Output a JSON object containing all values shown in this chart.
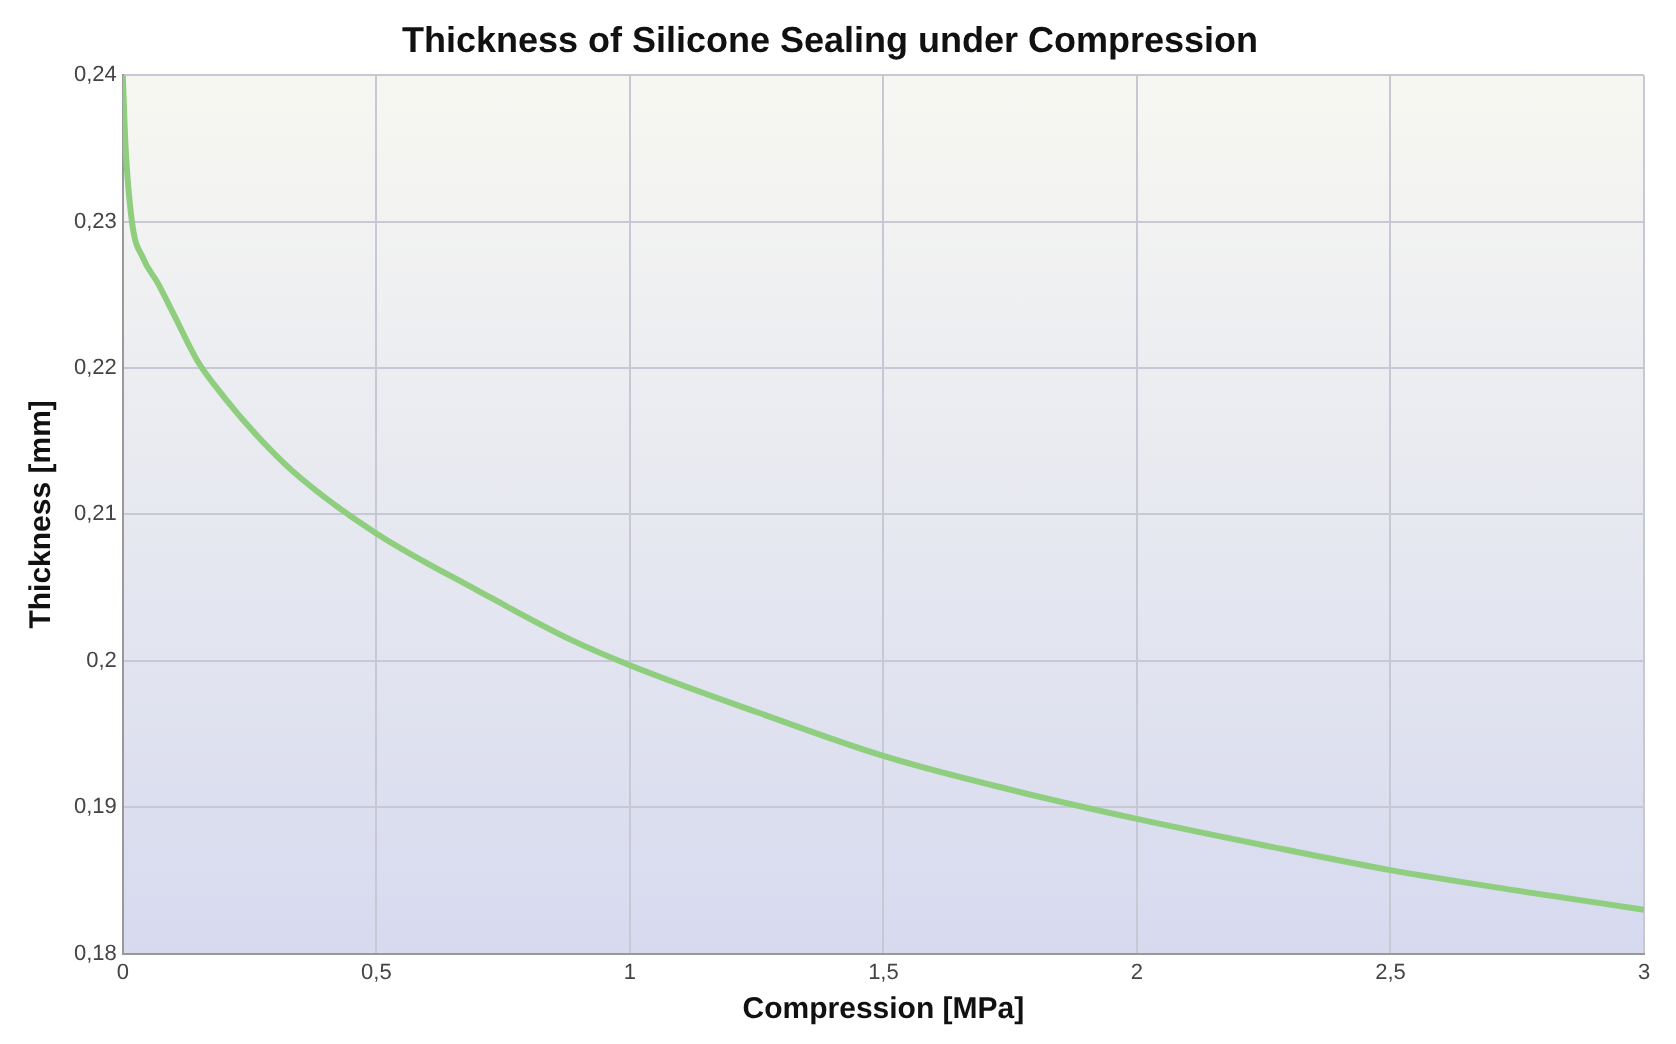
{
  "chart_data": {
    "type": "line",
    "title": "Thickness of Silicone Sealing under Compression",
    "xlabel": "Compression [MPa]",
    "ylabel": "Thickness [mm]",
    "series": [
      {
        "color": "#8fce7f",
        "x": [
          0,
          0.005,
          0.018,
          0.04,
          0.069,
          0.1,
          0.147,
          0.2,
          0.275,
          0.35,
          0.5,
          0.7,
          0.88,
          1,
          1.25,
          1.5,
          1.75,
          2,
          2.25,
          2.5,
          2.75,
          3
        ],
        "values": [
          0.24,
          0.2354,
          0.23,
          0.2275,
          0.2258,
          0.2237,
          0.2205,
          0.218,
          0.215,
          0.2125,
          0.2087,
          0.2048,
          0.2015,
          0.1997,
          0.1965,
          0.1935,
          0.1912,
          0.1892,
          0.1874,
          0.1857,
          0.1843,
          0.183
        ]
      }
    ],
    "xlim": [
      0,
      3
    ],
    "ylim": [
      0.18,
      0.24
    ],
    "xticks": [
      0,
      {
        "value": 0.5,
        "label": "0,5"
      },
      1,
      {
        "value": 1.5,
        "label": "1,5"
      },
      2,
      {
        "value": 2.5,
        "label": "2,5"
      },
      3
    ],
    "yticks": [
      {
        "value": 0.18,
        "label": "0,18"
      },
      {
        "value": 0.19,
        "label": "0,19"
      },
      {
        "value": 0.2,
        "label": "0,2"
      },
      {
        "value": 0.21,
        "label": "0,21"
      },
      {
        "value": 0.22,
        "label": "0,22"
      },
      {
        "value": 0.23,
        "label": "0,23"
      },
      {
        "value": 0.24,
        "label": "0,24"
      }
    ],
    "grid": true,
    "legend": false,
    "marker": "none",
    "line_style": "solid"
  }
}
